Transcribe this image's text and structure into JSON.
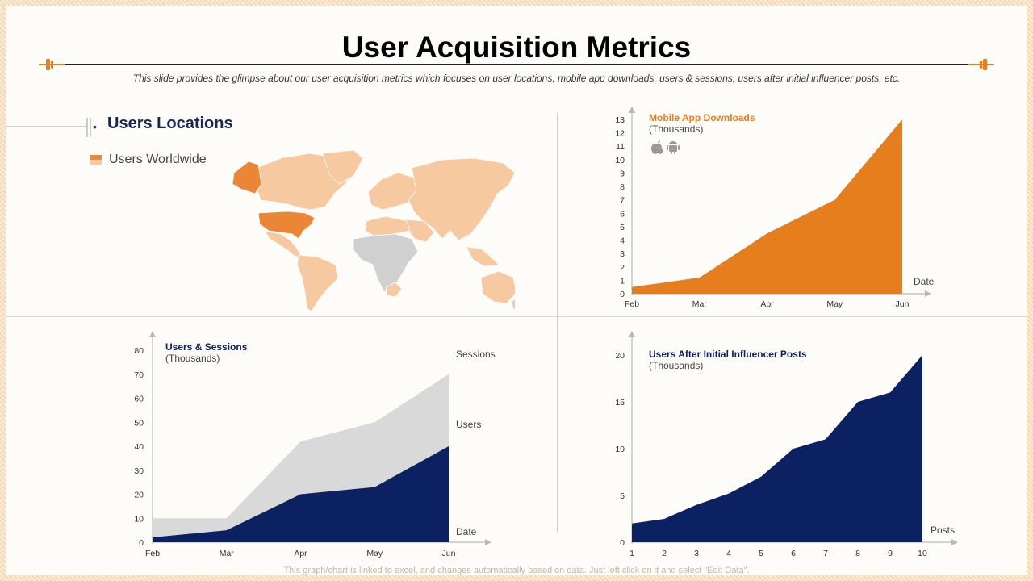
{
  "title": "User Acquisition Metrics",
  "subtitle": "This slide provides the glimpse about our user acquisition metrics which focuses on user locations, mobile app downloads, users & sessions, users after initial influencer posts, etc.",
  "footer": "This graph/chart is linked to excel, and changes automatically based on data. Just left click on it and select \"Edit Data\".",
  "colors": {
    "orange": "#e77e1e",
    "navy": "#0b2162",
    "gray": "#d9d9d9",
    "map_light": "#f7c9a0",
    "map_highlight": "#ea8636",
    "map_gray": "#d0d0d0"
  },
  "locations": {
    "title": "Users Locations",
    "legend": "Users Worldwide"
  },
  "chart_data": [
    {
      "id": "downloads",
      "type": "area",
      "title": "Mobile App Downloads",
      "subtitle": "(Thousands)",
      "xlabel": "Date",
      "icons": [
        "apple-icon",
        "android-icon"
      ],
      "categories": [
        "Feb",
        "Mar",
        "Apr",
        "May",
        "Jun"
      ],
      "values": [
        0.5,
        1.2,
        4.5,
        7,
        13
      ],
      "ylim": [
        0,
        13
      ],
      "yticks": [
        "0",
        "1",
        "2",
        "3",
        "4",
        "5",
        "6",
        "7",
        "8",
        "9",
        "10",
        "11",
        "12",
        "13"
      ]
    },
    {
      "id": "sessions",
      "type": "area",
      "title": "Users & Sessions",
      "subtitle": "(Thousands)",
      "xlabel": "Date",
      "categories": [
        "Feb",
        "Mar",
        "Apr",
        "May",
        "Jun"
      ],
      "ylim": [
        0,
        80
      ],
      "yticks": [
        "0",
        "10",
        "20",
        "30",
        "40",
        "50",
        "60",
        "70",
        "80"
      ],
      "series": [
        {
          "name": "Sessions",
          "values": [
            10,
            10,
            42,
            50,
            70
          ]
        },
        {
          "name": "Users",
          "values": [
            2,
            5,
            20,
            23,
            40
          ]
        }
      ]
    },
    {
      "id": "influencer",
      "type": "area",
      "title": "Users After Initial Influencer Posts",
      "subtitle": "(Thousands)",
      "xlabel": "Posts",
      "categories": [
        "1",
        "2",
        "3",
        "4",
        "5",
        "6",
        "7",
        "8",
        "9",
        "10"
      ],
      "values": [
        2,
        2.5,
        4,
        5.2,
        7,
        10,
        11,
        15,
        16,
        20
      ],
      "ylim": [
        0,
        20
      ],
      "yticks": [
        "0",
        "5",
        "10",
        "15",
        "20"
      ]
    }
  ]
}
